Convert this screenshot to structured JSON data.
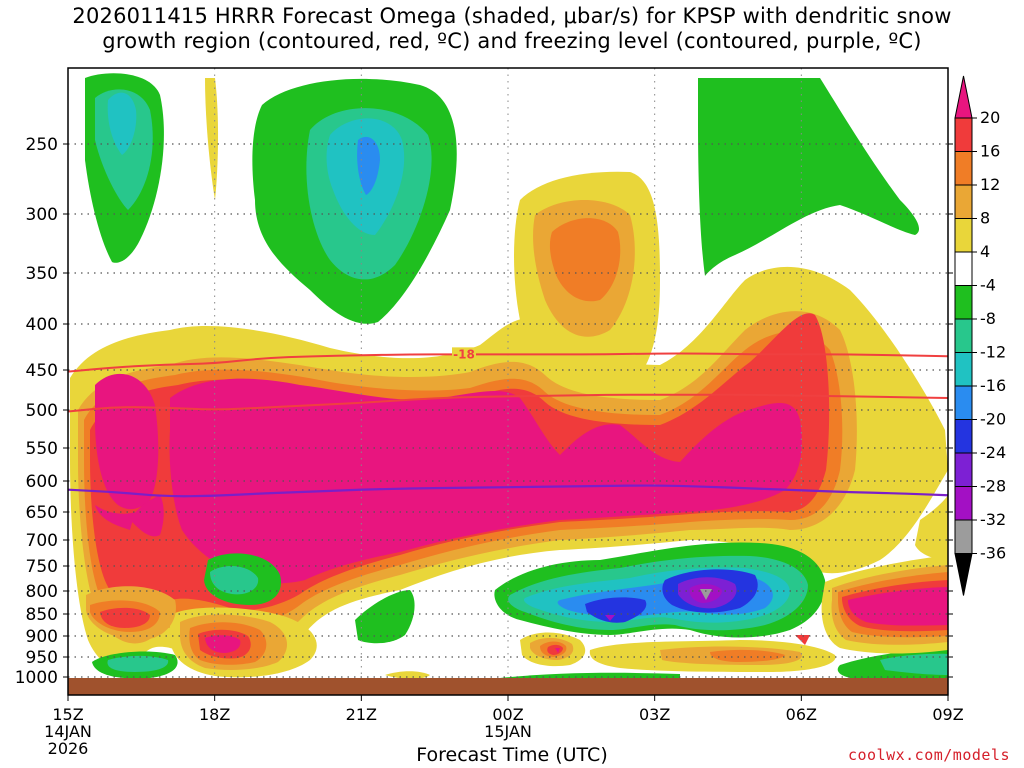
{
  "title_line1": "2026011415 HRRR Forecast Omega (shaded, μbar/s) for KPSP with dendritic snow",
  "title_line2": "growth region (contoured, red, ºC) and freezing level (contoured, purple, ºC)",
  "credit": "coolwx.com/models",
  "chart_data": {
    "type": "heatmap",
    "title": "2026011415 HRRR Forecast Omega (shaded, μbar/s) for KPSP with dendritic snow growth region (contoured, red, ºC) and freezing level (contoured, purple, ºC)",
    "xlabel": "Forecast Time (UTC)",
    "ylabel": "",
    "x_ticks": [
      {
        "label": "15Z",
        "sub1": "14JAN",
        "sub2": "2026",
        "hour": 15
      },
      {
        "label": "18Z",
        "sub1": "",
        "sub2": "",
        "hour": 18
      },
      {
        "label": "21Z",
        "sub1": "",
        "sub2": "",
        "hour": 21
      },
      {
        "label": "00Z",
        "sub1": "15JAN",
        "sub2": "",
        "hour": 24
      },
      {
        "label": "03Z",
        "sub1": "",
        "sub2": "",
        "hour": 27
      },
      {
        "label": "06Z",
        "sub1": "",
        "sub2": "",
        "hour": 30
      },
      {
        "label": "09Z",
        "sub1": "",
        "sub2": "",
        "hour": 33
      }
    ],
    "xlim_hours": [
      15,
      33
    ],
    "y_ticks": [
      250,
      300,
      350,
      400,
      450,
      500,
      550,
      600,
      650,
      700,
      750,
      800,
      850,
      900,
      950,
      1000
    ],
    "ylim_hpa": [
      1025,
      200
    ],
    "y_scale": "pressure (log-like)",
    "grid": true,
    "colorbar": {
      "labels": [
        "20",
        "16",
        "12",
        "8",
        "4",
        "-4",
        "-8",
        "-12",
        "-16",
        "-20",
        "-24",
        "-28",
        "-32",
        "-36"
      ],
      "colors": [
        "#e8157f",
        "#f03b3b",
        "#f07d26",
        "#eaa735",
        "#e9d63a",
        "#ffffff",
        "#1fbf1f",
        "#28c78c",
        "#20c2c2",
        "#2a8cf0",
        "#2434e0",
        "#7d20d4",
        "#a310c4",
        "#9c9c9c",
        "#000000"
      ],
      "extend": "both"
    },
    "shading_colors": {
      "pos_4_8": "#e9d63a",
      "pos_8_12": "#eaa735",
      "pos_12_16": "#f07d26",
      "pos_16_20": "#f03b3b",
      "pos_gt_20": "#e8157f",
      "neg_4_8": "#1fbf1f",
      "neg_8_12": "#28c78c",
      "neg_12_16": "#20c2c2",
      "neg_16_20": "#2a8cf0",
      "neg_20_24": "#2434e0",
      "neg_24_28": "#7d20d4",
      "neg_28_32": "#a310c4",
      "neg_32_36": "#9c9c9c"
    },
    "contours": [
      {
        "kind": "dendritic",
        "color": "#f04040",
        "label": "-18",
        "points": [
          [
            15,
            452
          ],
          [
            16,
            447
          ],
          [
            17,
            444
          ],
          [
            18,
            443
          ],
          [
            19,
            437
          ],
          [
            20,
            435
          ],
          [
            21,
            434
          ],
          [
            22,
            433
          ],
          [
            23,
            433
          ],
          [
            24,
            433
          ],
          [
            25,
            433
          ],
          [
            26,
            433
          ],
          [
            27,
            432
          ],
          [
            28,
            432
          ],
          [
            29,
            433
          ],
          [
            30,
            433
          ],
          [
            31,
            433
          ],
          [
            32,
            434
          ],
          [
            33,
            435
          ]
        ]
      },
      {
        "kind": "dendritic",
        "color": "#f04040",
        "label": "",
        "points": [
          [
            15,
            502
          ],
          [
            16,
            496
          ],
          [
            17,
            497
          ],
          [
            18,
            500
          ],
          [
            19,
            497
          ],
          [
            20,
            494
          ],
          [
            21,
            491
          ],
          [
            22,
            487
          ],
          [
            23,
            484
          ],
          [
            24,
            483
          ],
          [
            25,
            482
          ],
          [
            26,
            481
          ],
          [
            27,
            481
          ],
          [
            28,
            481
          ],
          [
            29,
            481
          ],
          [
            30,
            482
          ],
          [
            31,
            483
          ],
          [
            32,
            484
          ],
          [
            33,
            485
          ]
        ]
      },
      {
        "kind": "freezing",
        "color": "#7b1fc8",
        "label": "",
        "points": [
          [
            15,
            614
          ],
          [
            16,
            618
          ],
          [
            17,
            625
          ],
          [
            18,
            624
          ],
          [
            19,
            620
          ],
          [
            20,
            617
          ],
          [
            21,
            614
          ],
          [
            22,
            612
          ],
          [
            23,
            611
          ],
          [
            24,
            610
          ],
          [
            25,
            609
          ],
          [
            26,
            608
          ],
          [
            27,
            607
          ],
          [
            28,
            609
          ],
          [
            29,
            612
          ],
          [
            30,
            615
          ],
          [
            31,
            618
          ],
          [
            32,
            620
          ],
          [
            33,
            623
          ]
        ]
      }
    ],
    "ground_level_hpa": 1012
  }
}
